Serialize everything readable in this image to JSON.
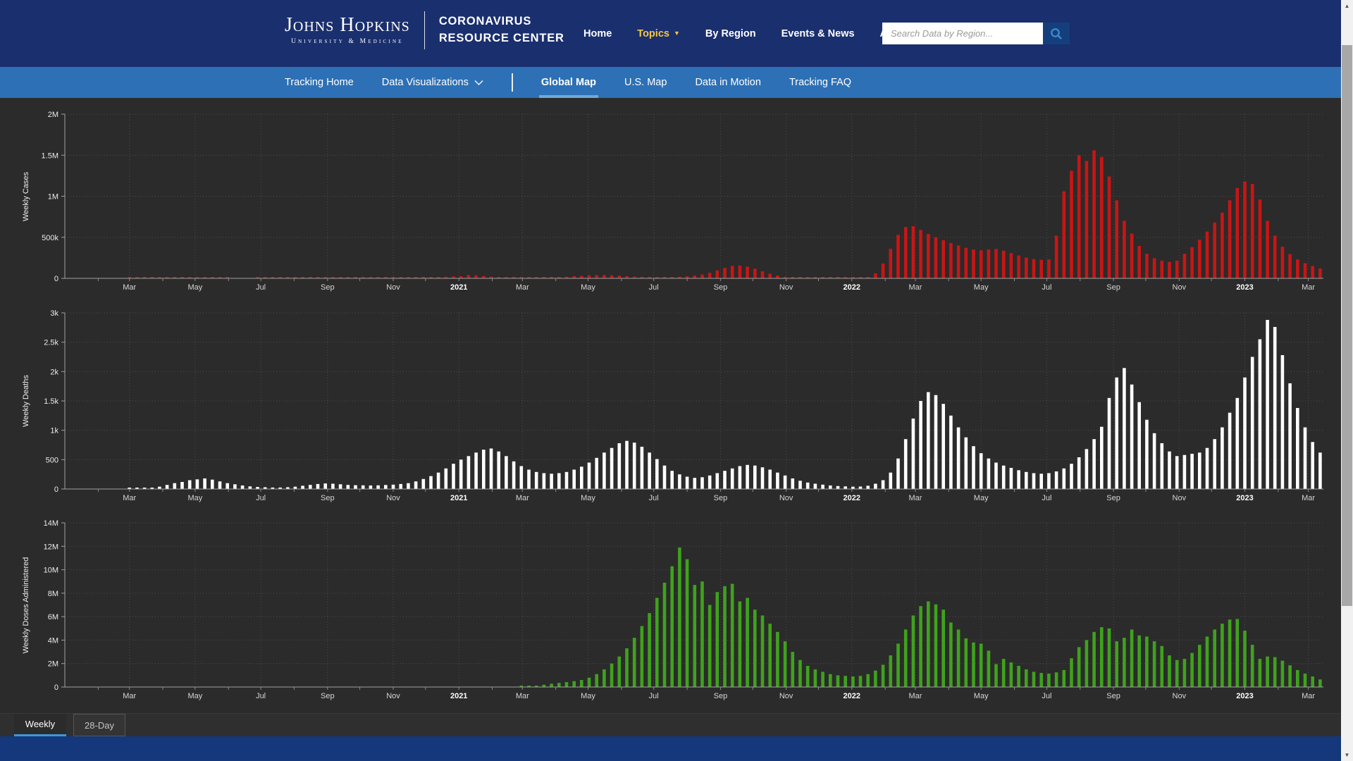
{
  "header": {
    "logo": {
      "university": "Johns Hopkins",
      "university_sub": "University & Medicine",
      "brand_line1": "CORONAVIRUS",
      "brand_line2": "RESOURCE CENTER"
    },
    "nav": [
      {
        "label": "Home"
      },
      {
        "label": "Topics",
        "arrow": "▼",
        "accent_color": "#f6c644"
      },
      {
        "label": "By Region"
      },
      {
        "label": "Events & News"
      },
      {
        "label": "About"
      }
    ],
    "search": {
      "placeholder": "Search Data by Region...",
      "value": ""
    }
  },
  "subnav": {
    "items": [
      "Tracking Home",
      "Data Visualizations",
      "Global Map",
      "U.S. Map",
      "Data in Motion",
      "Tracking FAQ"
    ],
    "active": "Global Map",
    "active_underline_color": "#6fa8d8"
  },
  "tabs": {
    "items": [
      "Weekly",
      "28-Day"
    ],
    "active": "Weekly"
  },
  "colors": {
    "header_navy": "#1a2f6e",
    "subnav_blue": "#2d70b5",
    "footer_navy": "#14387b",
    "chart_background": "#2b2b2b",
    "cases_red": "#c91515",
    "deaths_white": "#ffffff",
    "doses_green": "#3fa21c",
    "topics_yellow": "#f6c644"
  },
  "x_axis": {
    "start": "2020-01",
    "end": "2023-03",
    "tick_labels": [
      "Mar",
      "May",
      "Jul",
      "Sep",
      "Nov",
      "2021",
      "Mar",
      "May",
      "Jul",
      "Sep",
      "Nov",
      "2022",
      "Mar",
      "May",
      "Jul",
      "Sep",
      "Nov",
      "2023",
      "Mar"
    ],
    "grid": "dotted"
  },
  "chart_data": [
    {
      "type": "bar",
      "name": "weekly-cases",
      "ylabel": "Weekly Cases",
      "color": "#c91515",
      "ylim": [
        0,
        2000000
      ],
      "ytick_values": [
        0,
        500000,
        1000000,
        1500000,
        2000000
      ],
      "ytick_labels": [
        "0",
        "500k",
        "1M",
        "1.5M",
        "2M"
      ],
      "start_week": "2020-01-05",
      "interval": "weekly",
      "values": [
        0,
        0,
        0,
        0,
        0,
        100,
        200,
        300,
        500,
        900,
        1400,
        2000,
        2800,
        3600,
        4200,
        3800,
        3200,
        2600,
        2000,
        1400,
        900,
        600,
        450,
        400,
        420,
        500,
        800,
        1600,
        3200,
        5200,
        7200,
        9300,
        10000,
        9200,
        8100,
        7000,
        5800,
        4600,
        3800,
        3300,
        3100,
        3200,
        3500,
        3900,
        4400,
        5200,
        6500,
        9000,
        12000,
        15000,
        18500,
        23000,
        27000,
        40000,
        36000,
        28000,
        20000,
        14000,
        10000,
        8200,
        7800,
        8200,
        9000,
        10500,
        12500,
        15500,
        20000,
        26000,
        31000,
        36000,
        39000,
        41000,
        38000,
        33000,
        27000,
        21000,
        16000,
        13500,
        12500,
        13500,
        16000,
        20000,
        26000,
        34000,
        47000,
        68000,
        96000,
        128000,
        152000,
        156000,
        142000,
        118000,
        86000,
        56000,
        34000,
        19000,
        10000,
        5600,
        3200,
        2100,
        1500,
        1100,
        900,
        800,
        900,
        2000,
        12000,
        60000,
        180000,
        360000,
        530000,
        625000,
        635000,
        590000,
        540000,
        500000,
        465000,
        430000,
        400000,
        372000,
        352000,
        340000,
        350000,
        358000,
        336000,
        308000,
        278000,
        252000,
        234000,
        226000,
        230000,
        520000,
        1060000,
        1310000,
        1500000,
        1430000,
        1560000,
        1480000,
        1240000,
        950000,
        700000,
        545000,
        395000,
        300000,
        245000,
        215000,
        200000,
        215000,
        300000,
        380000,
        470000,
        570000,
        680000,
        800000,
        950000,
        1100000,
        1180000,
        1150000,
        960000,
        700000,
        520000,
        385000,
        295000,
        230000,
        185000,
        150000,
        120000
      ]
    },
    {
      "type": "bar",
      "name": "weekly-deaths",
      "ylabel": "Weekly Deaths",
      "color": "#ffffff",
      "ylim": [
        0,
        3000
      ],
      "ytick_values": [
        0,
        500,
        1000,
        1500,
        2000,
        2500,
        3000
      ],
      "ytick_labels": [
        "0",
        "500",
        "1k",
        "1.5k",
        "2k",
        "2.5k",
        "3k"
      ],
      "start_week": "2020-01-05",
      "interval": "weekly",
      "values": [
        0,
        0,
        0,
        0,
        0,
        0,
        1,
        2,
        5,
        10,
        15,
        22,
        40,
        70,
        100,
        120,
        150,
        165,
        180,
        160,
        130,
        100,
        80,
        60,
        45,
        35,
        30,
        25,
        25,
        30,
        40,
        55,
        70,
        85,
        95,
        90,
        80,
        70,
        65,
        62,
        60,
        62,
        68,
        75,
        85,
        100,
        130,
        170,
        220,
        280,
        350,
        430,
        500,
        560,
        620,
        670,
        690,
        640,
        560,
        470,
        390,
        330,
        290,
        270,
        260,
        270,
        290,
        330,
        380,
        450,
        530,
        620,
        700,
        780,
        820,
        790,
        720,
        620,
        510,
        400,
        310,
        250,
        210,
        190,
        200,
        230,
        270,
        310,
        350,
        390,
        410,
        400,
        370,
        330,
        280,
        230,
        180,
        140,
        110,
        90,
        75,
        60,
        50,
        45,
        40,
        42,
        55,
        90,
        150,
        280,
        520,
        850,
        1200,
        1500,
        1650,
        1600,
        1450,
        1250,
        1050,
        880,
        730,
        610,
        520,
        450,
        400,
        360,
        320,
        290,
        270,
        260,
        270,
        300,
        350,
        430,
        540,
        680,
        850,
        1060,
        1550,
        1900,
        2060,
        1780,
        1480,
        1180,
        950,
        780,
        640,
        560,
        580,
        600,
        620,
        700,
        850,
        1050,
        1300,
        1550,
        1900,
        2250,
        2550,
        2880,
        2760,
        2280,
        1800,
        1380,
        1050,
        800,
        620
      ]
    },
    {
      "type": "bar",
      "name": "weekly-doses-administered",
      "ylabel": "Weekly Doses Administered",
      "color": "#3fa21c",
      "ylim": [
        0,
        14000000
      ],
      "ytick_values": [
        0,
        2000000,
        4000000,
        6000000,
        8000000,
        10000000,
        12000000,
        14000000
      ],
      "ytick_labels": [
        "0",
        "2M",
        "4M",
        "6M",
        "8M",
        "10M",
        "12M",
        "14M"
      ],
      "start_week": "2020-01-05",
      "interval": "weekly",
      "values": [
        0,
        0,
        0,
        0,
        0,
        0,
        0,
        0,
        0,
        0,
        0,
        0,
        0,
        0,
        0,
        0,
        0,
        0,
        0,
        0,
        0,
        0,
        0,
        0,
        0,
        0,
        0,
        0,
        0,
        0,
        0,
        0,
        0,
        0,
        0,
        0,
        0,
        0,
        0,
        0,
        0,
        0,
        0,
        0,
        0,
        0,
        0,
        0,
        0,
        0,
        0,
        0,
        0,
        0,
        0,
        0,
        0,
        0,
        0,
        0,
        10000,
        50000,
        120000,
        200000,
        280000,
        350000,
        420000,
        500000,
        600000,
        800000,
        1100000,
        1500000,
        2000000,
        2600000,
        3300000,
        4200000,
        5200000,
        6300000,
        7600000,
        8900000,
        10300000,
        11900000,
        10900000,
        8700000,
        9000000,
        7000000,
        8100000,
        8600000,
        8800000,
        7300000,
        7600000,
        6600000,
        6100000,
        5400000,
        4700000,
        3900000,
        3000000,
        2300000,
        1800000,
        1500000,
        1300000,
        1100000,
        1000000,
        950000,
        900000,
        950000,
        1100000,
        1400000,
        1900000,
        2700000,
        3700000,
        4900000,
        6100000,
        6900000,
        7300000,
        7050000,
        6600000,
        5500000,
        4900000,
        4150000,
        3800000,
        3700000,
        3100000,
        1950000,
        2400000,
        2100000,
        1800000,
        1500000,
        1300000,
        1200000,
        1150000,
        1250000,
        1450000,
        2450000,
        3400000,
        4000000,
        4700000,
        5100000,
        5000000,
        3900000,
        4200000,
        4900000,
        4400000,
        4300000,
        3900000,
        3500000,
        2700000,
        2300000,
        2400000,
        2900000,
        3600000,
        4300000,
        4900000,
        5400000,
        5750000,
        5800000,
        4800000,
        3600000,
        2400000,
        2600000,
        2550000,
        2250000,
        1850000,
        1450000,
        1150000,
        900000,
        650000
      ]
    }
  ]
}
